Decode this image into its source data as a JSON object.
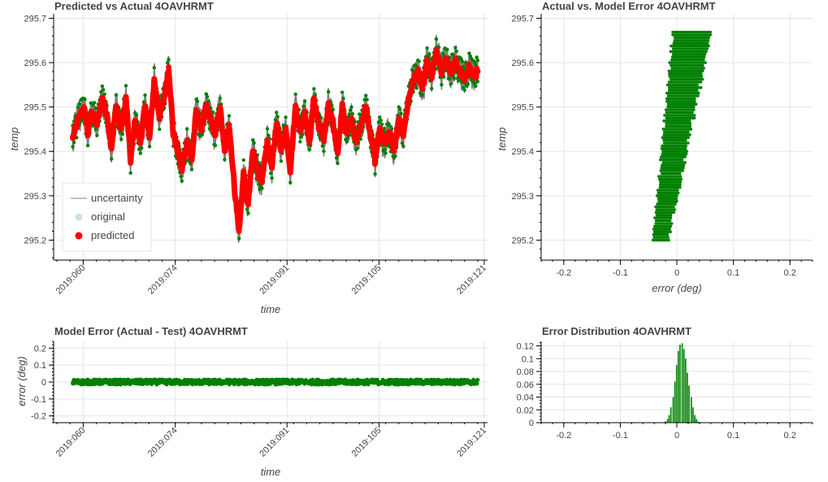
{
  "colors": {
    "uncertainty": "#808080",
    "original": "#008000",
    "predicted": "#ff0000",
    "grid": "#e5e5e5",
    "axis": "#000000",
    "text": "#444444"
  },
  "chart_data": [
    {
      "type": "line",
      "title": "Predicted vs Actual 4OAVHRMT",
      "xlabel": "time",
      "ylabel": "temp",
      "xlim": [
        55.5,
        121.5
      ],
      "ylim": [
        295.155,
        295.71
      ],
      "x_ticks": [
        {
          "value": 60,
          "label": "2019:060"
        },
        {
          "value": 74,
          "label": "2019:074"
        },
        {
          "value": 91,
          "label": "2019:091"
        },
        {
          "value": 105,
          "label": "2019:105"
        },
        {
          "value": 121,
          "label": "2019:121"
        }
      ],
      "y_ticks": [
        295.2,
        295.3,
        295.4,
        295.5,
        295.6,
        295.7
      ],
      "legend": {
        "placement": "bottom-left",
        "items": [
          {
            "name": "uncertainty",
            "kind": "line"
          },
          {
            "name": "original",
            "kind": "circle"
          },
          {
            "name": "predicted",
            "kind": "circle"
          }
        ]
      },
      "series": [
        {
          "name": "predicted",
          "x": [
            58.4,
            59.2,
            60.1,
            60.7,
            61.3,
            62.1,
            62.9,
            63.6,
            64.3,
            65.0,
            65.8,
            66.5,
            67.2,
            67.9,
            68.7,
            69.4,
            70.1,
            70.8,
            71.6,
            72.3,
            73.0,
            73.7,
            74.4,
            75.0,
            75.8,
            76.5,
            77.2,
            77.9,
            78.7,
            79.4,
            80.1,
            80.8,
            81.5,
            82.2,
            83.0,
            83.7,
            84.4,
            85.1,
            85.8,
            86.5,
            87.2,
            88.0,
            88.7,
            89.4,
            90.1,
            90.8,
            91.5,
            92.3,
            93.0,
            93.7,
            94.4,
            95.1,
            95.8,
            96.6,
            97.3,
            98.0,
            98.7,
            99.4,
            100.1,
            100.8,
            101.5,
            102.2,
            103.0,
            103.7,
            104.4,
            105.1,
            105.8,
            106.6,
            107.3,
            108.0,
            108.7,
            109.5,
            110.2,
            110.9,
            111.6,
            112.3,
            113.0,
            113.7,
            114.5,
            115.2,
            115.9,
            116.6,
            117.3,
            118.0,
            118.7,
            119.4,
            120.0
          ],
          "y": [
            295.43,
            295.47,
            295.5,
            295.44,
            295.49,
            295.46,
            295.52,
            295.48,
            295.41,
            295.5,
            295.45,
            295.52,
            295.38,
            295.47,
            295.42,
            295.5,
            295.43,
            295.56,
            295.48,
            295.52,
            295.59,
            295.44,
            295.4,
            295.36,
            295.42,
            295.38,
            295.49,
            295.45,
            295.5,
            295.47,
            295.44,
            295.5,
            295.4,
            295.46,
            295.32,
            295.22,
            295.35,
            295.28,
            295.4,
            295.36,
            295.33,
            295.42,
            295.37,
            295.46,
            295.41,
            295.45,
            295.36,
            295.5,
            295.45,
            295.49,
            295.42,
            295.52,
            295.46,
            295.43,
            295.5,
            295.46,
            295.4,
            295.5,
            295.44,
            295.47,
            295.42,
            295.46,
            295.5,
            295.44,
            295.38,
            295.45,
            295.42,
            295.44,
            295.4,
            295.47,
            295.44,
            295.52,
            295.56,
            295.58,
            295.54,
            295.6,
            295.57,
            295.62,
            295.58,
            295.61,
            295.58,
            295.6,
            295.58,
            295.56,
            295.59,
            295.57,
            295.58
          ]
        },
        {
          "name": "uncertainty",
          "band": 0.025
        },
        {
          "name": "original",
          "offset": 0.015
        }
      ]
    },
    {
      "type": "scatter",
      "title": "Actual vs. Model Error 4OAVHRMT",
      "xlabel": "error (deg)",
      "ylabel": "temp",
      "xlim": [
        -0.24,
        0.24
      ],
      "ylim": [
        295.155,
        295.71
      ],
      "x_ticks": [
        {
          "value": -0.2,
          "label": "-0.2"
        },
        {
          "value": -0.1,
          "label": "-0.1"
        },
        {
          "value": 0,
          "label": "0"
        },
        {
          "value": 0.1,
          "label": "0.1"
        },
        {
          "value": 0.2,
          "label": "0.2"
        }
      ],
      "y_ticks": [
        295.2,
        295.3,
        295.4,
        295.5,
        295.6,
        295.7
      ],
      "rows": {
        "temp_start": 295.2,
        "temp_end": 295.67,
        "temp_step": 0.00625,
        "error_range_bottom": [
          -0.04,
          -0.015
        ],
        "error_range_top": [
          -0.005,
          0.06
        ]
      }
    },
    {
      "type": "scatter",
      "title": "Model Error (Actual - Test) 4OAVHRMT",
      "xlabel": "time",
      "ylabel": "error (deg)",
      "xlim": [
        55.5,
        121.5
      ],
      "ylim": [
        -0.24,
        0.24
      ],
      "x_ticks": [
        {
          "value": 60,
          "label": "2019:060"
        },
        {
          "value": 74,
          "label": "2019:074"
        },
        {
          "value": 91,
          "label": "2019:091"
        },
        {
          "value": 105,
          "label": "2019:105"
        },
        {
          "value": 121,
          "label": "2019:121"
        }
      ],
      "y_ticks": [
        {
          "value": 0.2,
          "label": "0.2"
        },
        {
          "value": 0.1,
          "label": "0.1"
        },
        {
          "value": 0,
          "label": "0"
        },
        {
          "value": -0.1,
          "label": "-0.1"
        },
        {
          "value": -0.2,
          "label": "-0.2"
        }
      ],
      "series": [
        {
          "name": "error",
          "x_range": [
            58.4,
            120.0
          ],
          "center": 0.0,
          "spread": 0.015
        }
      ]
    },
    {
      "type": "bar",
      "title": "Error Distribution 4OAVHRMT",
      "xlabel": "",
      "ylabel": "",
      "xlim": [
        -0.24,
        0.24
      ],
      "ylim": [
        0,
        0.127
      ],
      "x_ticks": [
        {
          "value": -0.2,
          "label": "-0.2"
        },
        {
          "value": -0.1,
          "label": "-0.1"
        },
        {
          "value": 0,
          "label": "0"
        },
        {
          "value": 0.1,
          "label": "0.1"
        },
        {
          "value": 0.2,
          "label": "0.2"
        }
      ],
      "y_ticks": [
        {
          "value": 0.12,
          "label": "0.12"
        },
        {
          "value": 0.1,
          "label": "0.1"
        },
        {
          "value": 0.08,
          "label": "0.08"
        },
        {
          "value": 0.06,
          "label": "0.06"
        },
        {
          "value": 0.04,
          "label": "0.04"
        },
        {
          "value": 0.02,
          "label": "0.02"
        },
        {
          "value": 0,
          "label": "0"
        }
      ],
      "bin_width": 0.0032,
      "bins": [
        -0.02,
        -0.016,
        -0.013,
        -0.01,
        -0.006,
        -0.003,
        0.0,
        0.003,
        0.006,
        0.01,
        0.013,
        0.016,
        0.019,
        0.022,
        0.026,
        0.029,
        0.032,
        0.035,
        0.038,
        0.042
      ],
      "values": [
        0.002,
        0.006,
        0.012,
        0.024,
        0.04,
        0.064,
        0.09,
        0.112,
        0.122,
        0.124,
        0.115,
        0.1,
        0.078,
        0.058,
        0.04,
        0.024,
        0.012,
        0.006,
        0.002,
        0.001
      ]
    }
  ]
}
